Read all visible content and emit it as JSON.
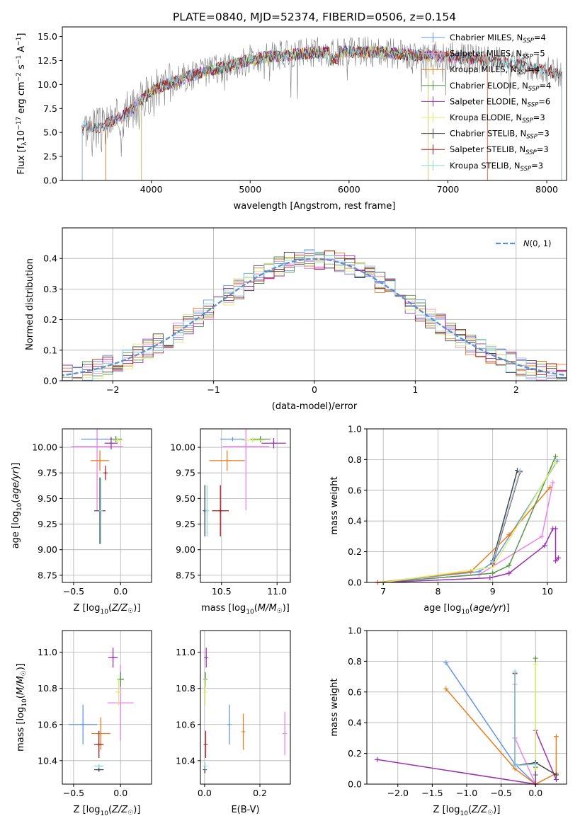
{
  "figure": {
    "title": "PLATE=0840, MJD=52374, FIBERID=0506, z=0.154"
  },
  "colors": {
    "Chabrier MILES": "#6495ed",
    "Salpeter MILES": "#ee82ee",
    "Kroupa MILES": "#e87d1f",
    "Chabrier ELODIE": "#55964a",
    "Salpeter ELODIE": "#9b30b4",
    "Kroupa ELODIE": "#dcef6c",
    "Chabrier STELIB": "#444444",
    "Salpeter STELIB": "#a81c1c",
    "Kroupa STELIB": "#8ed8e3",
    "data": "#808080",
    "normal": "#5b8fd8"
  },
  "chart_data": [
    {
      "id": "spectrum",
      "type": "line",
      "title": "PLATE=0840, MJD=52374, FIBERID=0506, z=0.154",
      "xlabel": "wavelength [Angstrom, rest frame]",
      "ylabel": "Flux [f_λ 10^-17 erg cm^-2 s^-1 A^-1]",
      "xlim": [
        3100,
        8200
      ],
      "ylim": [
        0,
        16
      ],
      "xticks": [
        4000,
        5000,
        6000,
        7000,
        8000
      ],
      "yticks": [
        0.0,
        2.5,
        5.0,
        7.5,
        10.0,
        12.5,
        15.0
      ],
      "xtick_labels": [
        "4000",
        "5000",
        "6000",
        "7000",
        "8000"
      ],
      "ytick_labels": [
        "0.0",
        "2.5",
        "5.0",
        "7.5",
        "10.0",
        "12.5",
        "15.0"
      ],
      "legend_position": "right",
      "legend": [
        {
          "label": "Chabrier MILES, N",
          "sub": "SSP",
          "tail": "=4"
        },
        {
          "label": "Salpeter MILES, N",
          "sub": "SSP",
          "tail": "=5"
        },
        {
          "label": "Kroupa MILES, N",
          "sub": "SSP",
          "tail": "=4"
        },
        {
          "label": "Chabrier ELODIE, N",
          "sub": "SSP",
          "tail": "=4"
        },
        {
          "label": "Salpeter ELODIE, N",
          "sub": "SSP",
          "tail": "=6"
        },
        {
          "label": "Kroupa ELODIE, N",
          "sub": "SSP",
          "tail": "=3"
        },
        {
          "label": "Chabrier STELIB, N",
          "sub": "SSP",
          "tail": "=3"
        },
        {
          "label": "Salpeter STELIB, N",
          "sub": "SSP",
          "tail": "=3"
        },
        {
          "label": "Kroupa STELIB, N",
          "sub": "SSP",
          "tail": "=3"
        }
      ],
      "continuum_points": {
        "x": [
          3300,
          3400,
          3500,
          3600,
          3700,
          3800,
          3900,
          4000,
          4200,
          4400,
          4600,
          4800,
          5000,
          5200,
          5400,
          5600,
          5800,
          6000,
          6200,
          6400,
          6600,
          6800,
          7000,
          7200,
          7400,
          7600,
          7800,
          8000,
          8150
        ],
        "y": [
          5.8,
          5.6,
          5.5,
          6.2,
          6.6,
          7.4,
          8.4,
          9.3,
          10.2,
          10.9,
          11.5,
          11.9,
          12.6,
          12.9,
          13.1,
          13.3,
          13.4,
          13.4,
          13.4,
          13.3,
          13.1,
          13.0,
          12.9,
          12.7,
          12.5,
          12.2,
          11.9,
          11.5,
          11.0
        ]
      },
      "model_wavelength_range": {
        "Chabrier MILES": [
          3540,
          7400
        ],
        "Salpeter MILES": [
          3540,
          7400
        ],
        "Kroupa MILES": [
          3540,
          7400
        ],
        "Chabrier ELODIE": [
          3900,
          6800
        ],
        "Salpeter ELODIE": [
          3900,
          6800
        ],
        "Kroupa ELODIE": [
          3900,
          6800
        ],
        "Chabrier STELIB": [
          3300,
          8150
        ],
        "Salpeter STELIB": [
          3300,
          8150
        ],
        "Kroupa STELIB": [
          3300,
          8150
        ]
      }
    },
    {
      "id": "residual_histogram",
      "type": "bar",
      "xlabel": "(data-model)/error",
      "ylabel": "Normed distribution",
      "xlim": [
        -2.5,
        2.5
      ],
      "ylim": [
        0,
        0.5
      ],
      "xticks": [
        -2,
        -1,
        0,
        1,
        2
      ],
      "yticks": [
        0.0,
        0.1,
        0.2,
        0.3,
        0.4
      ],
      "xtick_labels": [
        "−2",
        "−1",
        "0",
        "1",
        "2"
      ],
      "ytick_labels": [
        "0.0",
        "0.1",
        "0.2",
        "0.3",
        "0.4"
      ],
      "legend_position": "top-right",
      "normal_label": "N(0, 1)",
      "bin_width": 0.1,
      "series_seed_offsets": {
        "Chabrier MILES": 1,
        "Salpeter MILES": 2,
        "Kroupa MILES": 3,
        "Chabrier ELODIE": 4,
        "Salpeter ELODIE": 5,
        "Kroupa ELODIE": 6,
        "Chabrier STELIB": 7,
        "Salpeter STELIB": 8,
        "Kroupa STELIB": 9
      }
    },
    {
      "id": "age_vs_Z",
      "type": "scatter",
      "xlabel": "Z [log10(Z/Z☉)]",
      "ylabel": "age [log10(age/yr)]",
      "xlim": [
        -0.62,
        0.33
      ],
      "ylim": [
        8.68,
        10.18
      ],
      "xticks": [
        -0.5,
        0.0
      ],
      "yticks": [
        8.75,
        9.0,
        9.25,
        9.5,
        9.75,
        10.0
      ],
      "xtick_labels": [
        "−0.5",
        "0.0"
      ],
      "ytick_labels": [
        "8.75",
        "9.00",
        "9.25",
        "9.50",
        "9.75",
        "10.00"
      ],
      "points": [
        {
          "series": "Chabrier MILES",
          "x": -0.25,
          "xerr": 0.34,
          "y": 10.08,
          "yerr": 0.03
        },
        {
          "series": "Salpeter MILES",
          "x": -0.25,
          "xerr": 0.55,
          "y": 10.01,
          "yerr": 1.25
        },
        {
          "series": "Kroupa MILES",
          "x": -0.22,
          "xerr": 0.2,
          "y": 9.87,
          "yerr": 0.2
        },
        {
          "series": "Chabrier ELODIE",
          "x": -0.05,
          "xerr": 0.13,
          "y": 10.08,
          "yerr": 0.06
        },
        {
          "series": "Salpeter ELODIE",
          "x": -0.1,
          "xerr": 0.14,
          "y": 10.04,
          "yerr": 0.12
        },
        {
          "series": "Kroupa ELODIE",
          "x": -0.03,
          "xerr": 0.1,
          "y": 10.07,
          "yerr": 0.05
        },
        {
          "series": "Chabrier STELIB",
          "x": -0.22,
          "xerr": 0.12,
          "y": 9.38,
          "yerr": 0.65
        },
        {
          "series": "Salpeter STELIB",
          "x": -0.16,
          "xerr": 0.02,
          "y": 9.75,
          "yerr": 0.14
        },
        {
          "series": "Kroupa STELIB",
          "x": -0.21,
          "xerr": 0.02,
          "y": 9.38,
          "yerr": 0.65
        }
      ]
    },
    {
      "id": "age_vs_mass",
      "type": "scatter",
      "xlabel": "mass [log10(M/M☉)]",
      "ylabel": "",
      "xlim": [
        10.31,
        11.12
      ],
      "ylim": [
        8.68,
        10.18
      ],
      "xticks": [
        10.5,
        11.0
      ],
      "yticks": [
        8.75,
        9.0,
        9.25,
        9.5,
        9.75,
        10.0
      ],
      "xtick_labels": [
        "10.5",
        "11.0"
      ],
      "ytick_labels": [
        "8.75",
        "9.00",
        "9.25",
        "9.50",
        "9.75",
        "10.00"
      ],
      "points": [
        {
          "series": "Chabrier MILES",
          "x": 10.6,
          "xerr": 0.22,
          "y": 10.08,
          "yerr": 0.03
        },
        {
          "series": "Salpeter MILES",
          "x": 10.72,
          "xerr": 0.42,
          "y": 10.01,
          "yerr": 1.25
        },
        {
          "series": "Kroupa MILES",
          "x": 10.55,
          "xerr": 0.32,
          "y": 9.87,
          "yerr": 0.2
        },
        {
          "series": "Chabrier ELODIE",
          "x": 10.85,
          "xerr": 0.18,
          "y": 10.08,
          "yerr": 0.06
        },
        {
          "series": "Salpeter ELODIE",
          "x": 10.97,
          "xerr": 0.22,
          "y": 10.04,
          "yerr": 0.1
        },
        {
          "series": "Kroupa ELODIE",
          "x": 10.78,
          "xerr": 0.2,
          "y": 10.07,
          "yerr": 0.05
        },
        {
          "series": "Chabrier STELIB",
          "x": 10.35,
          "xerr": 0.02,
          "y": 9.38,
          "yerr": 0.5
        },
        {
          "series": "Salpeter STELIB",
          "x": 10.49,
          "xerr": 0.15,
          "y": 9.38,
          "yerr": 0.5
        },
        {
          "series": "Kroupa STELIB",
          "x": 10.37,
          "xerr": 0.02,
          "y": 9.38,
          "yerr": 0.5
        }
      ]
    },
    {
      "id": "weight_vs_age",
      "type": "line",
      "xlabel": "age [log10(age/yr)]",
      "ylabel": "mass weight",
      "xlim": [
        6.7,
        10.35
      ],
      "ylim": [
        0,
        1
      ],
      "xticks": [
        7,
        8,
        9,
        10
      ],
      "yticks": [
        0.0,
        0.2,
        0.4,
        0.6,
        0.8,
        1.0
      ],
      "xtick_labels": [
        "7",
        "8",
        "9",
        "10"
      ],
      "ytick_labels": [
        "0.0",
        "0.2",
        "0.4",
        "0.6",
        "0.8",
        "1.0"
      ],
      "series": [
        {
          "name": "Chabrier MILES",
          "x": [
            6.9,
            8.75,
            9.0,
            10.18
          ],
          "y": [
            0.0,
            0.07,
            0.13,
            0.79
          ]
        },
        {
          "name": "Salpeter MILES",
          "x": [
            6.9,
            8.75,
            9.9,
            10.1
          ],
          "y": [
            0.0,
            0.05,
            0.3,
            0.65
          ]
        },
        {
          "name": "Kroupa MILES",
          "x": [
            6.9,
            8.6,
            9.3,
            10.05
          ],
          "y": [
            0.0,
            0.07,
            0.31,
            0.62
          ]
        },
        {
          "name": "Chabrier ELODIE",
          "x": [
            7.0,
            9.0,
            9.3,
            10.15
          ],
          "y": [
            0.0,
            0.06,
            0.11,
            0.82
          ]
        },
        {
          "name": "Salpeter ELODIE",
          "x": [
            7.0,
            8.95,
            9.3,
            9.95,
            10.1,
            10.15,
            10.15,
            10.2
          ],
          "y": [
            0.0,
            0.03,
            0.06,
            0.24,
            0.35,
            0.35,
            0.14,
            0.16
          ]
        },
        {
          "name": "Kroupa ELODIE",
          "x": [
            7.0,
            9.0,
            10.15
          ],
          "y": [
            0.0,
            0.1,
            0.78
          ]
        },
        {
          "name": "Chabrier STELIB",
          "x": [
            9.0,
            9.45
          ],
          "y": [
            0.14,
            0.73
          ]
        },
        {
          "name": "Salpeter STELIB",
          "x": [
            9.0,
            9.5
          ],
          "y": [
            0.12,
            0.72
          ]
        },
        {
          "name": "Kroupa STELIB",
          "x": [
            9.0,
            9.5
          ],
          "y": [
            0.13,
            0.73
          ]
        }
      ]
    },
    {
      "id": "mass_vs_Z",
      "type": "scatter",
      "xlabel": "Z [log10(Z/Z☉)]",
      "ylabel": "mass [log10(M/M☉)]",
      "xlim": [
        -0.62,
        0.33
      ],
      "ylim": [
        10.27,
        11.12
      ],
      "xticks": [
        -0.5,
        0.0
      ],
      "yticks": [
        10.4,
        10.6,
        10.8,
        11.0
      ],
      "xtick_labels": [
        "−0.5",
        "0.0"
      ],
      "ytick_labels": [
        "10.4",
        "10.6",
        "10.8",
        "11.0"
      ],
      "points": [
        {
          "series": "Chabrier MILES",
          "x": -0.4,
          "xerr": 0.3,
          "y": 10.6,
          "yerr": 0.22
        },
        {
          "series": "Salpeter MILES",
          "x": 0.0,
          "xerr": 0.28,
          "y": 10.72,
          "yerr": 0.42
        },
        {
          "series": "Kroupa MILES",
          "x": -0.21,
          "xerr": 0.2,
          "y": 10.55,
          "yerr": 0.18
        },
        {
          "series": "Chabrier ELODIE",
          "x": 0.0,
          "xerr": 0.07,
          "y": 10.85,
          "yerr": 0.08
        },
        {
          "series": "Salpeter ELODIE",
          "x": -0.08,
          "xerr": 0.1,
          "y": 10.97,
          "yerr": 0.11
        },
        {
          "series": "Kroupa ELODIE",
          "x": -0.02,
          "xerr": 0.06,
          "y": 10.78,
          "yerr": 0.15
        },
        {
          "series": "Chabrier STELIB",
          "x": -0.23,
          "xerr": 0.1,
          "y": 10.35,
          "yerr": 0.02
        },
        {
          "series": "Salpeter STELIB",
          "x": -0.23,
          "xerr": 0.1,
          "y": 10.49,
          "yerr": 0.15
        },
        {
          "series": "Kroupa STELIB",
          "x": -0.23,
          "xerr": 0.1,
          "y": 10.37,
          "yerr": 0.02
        }
      ]
    },
    {
      "id": "mass_vs_EBV",
      "type": "scatter",
      "xlabel": "E(B-V)",
      "ylabel": "",
      "xlim": [
        -0.015,
        0.31
      ],
      "ylim": [
        10.27,
        11.12
      ],
      "xticks": [
        0.0,
        0.2
      ],
      "yticks": [
        10.4,
        10.6,
        10.8,
        11.0
      ],
      "xtick_labels": [
        "0.0",
        "0.2"
      ],
      "ytick_labels": [
        "10.4",
        "10.6",
        "10.8",
        "11.0"
      ],
      "points": [
        {
          "series": "Chabrier MILES",
          "x": 0.09,
          "xerr": 0.0,
          "y": 10.6,
          "yerr": 0.22
        },
        {
          "series": "Salpeter MILES",
          "x": 0.29,
          "xerr": 0.0,
          "y": 10.55,
          "yerr": 0.24
        },
        {
          "series": "Kroupa MILES",
          "x": 0.14,
          "xerr": 0.0,
          "y": 10.56,
          "yerr": 0.2
        },
        {
          "series": "Chabrier ELODIE",
          "x": 0.003,
          "xerr": 0.0,
          "y": 10.85,
          "yerr": 0.08
        },
        {
          "series": "Salpeter ELODIE",
          "x": 0.006,
          "xerr": 0.0,
          "y": 10.97,
          "yerr": 0.11
        },
        {
          "series": "Kroupa ELODIE",
          "x": 0.002,
          "xerr": 0.0,
          "y": 10.78,
          "yerr": 0.15
        },
        {
          "series": "Chabrier STELIB",
          "x": 0.001,
          "xerr": 0.0,
          "y": 10.35,
          "yerr": 0.04
        },
        {
          "series": "Salpeter STELIB",
          "x": 0.004,
          "xerr": 0.0,
          "y": 10.49,
          "yerr": 0.15
        },
        {
          "series": "Kroupa STELIB",
          "x": 0.002,
          "xerr": 0.0,
          "y": 10.37,
          "yerr": 0.04
        }
      ]
    },
    {
      "id": "weight_vs_Z",
      "type": "line",
      "xlabel": "Z [log10(Z/Z☉)]",
      "ylabel": "mass weight",
      "xlim": [
        -2.45,
        0.45
      ],
      "ylim": [
        0,
        1
      ],
      "xticks": [
        -2.0,
        -1.5,
        -1.0,
        -0.5,
        0.0
      ],
      "yticks": [
        0.0,
        0.2,
        0.4,
        0.6,
        0.8,
        1.0
      ],
      "xtick_labels": [
        "−2.0",
        "−1.5",
        "−1.0",
        "−0.5",
        "0.0"
      ],
      "ytick_labels": [
        "0.0",
        "0.2",
        "0.4",
        "0.6",
        "0.8",
        "1.0"
      ],
      "series": [
        {
          "name": "Chabrier MILES",
          "x": [
            -1.3,
            -0.3,
            0.0
          ],
          "y": [
            0.79,
            0.13,
            0.0
          ]
        },
        {
          "name": "Salpeter MILES",
          "x": [
            -0.3,
            -0.3,
            0.0
          ],
          "y": [
            0.65,
            0.3,
            0.0
          ]
        },
        {
          "name": "Kroupa MILES",
          "x": [
            -1.3,
            -0.3,
            0.0,
            0.3,
            0.3
          ],
          "y": [
            0.62,
            0.1,
            0.0,
            0.07,
            0.31
          ]
        },
        {
          "name": "Chabrier ELODIE",
          "x": [
            0.0,
            0.0,
            0.0
          ],
          "y": [
            0.82,
            0.11,
            0.06
          ]
        },
        {
          "name": "Salpeter ELODIE",
          "x": [
            -2.3,
            0.0,
            0.0,
            0.3
          ],
          "y": [
            0.16,
            0.0,
            0.35,
            0.03
          ]
        },
        {
          "name": "Kroupa ELODIE",
          "x": [
            0.0,
            0.0
          ],
          "y": [
            0.78,
            0.1
          ]
        },
        {
          "name": "Chabrier STELIB",
          "x": [
            -0.3,
            -0.3,
            0.0,
            0.3
          ],
          "y": [
            0.73,
            0.12,
            0.14,
            0.06
          ]
        },
        {
          "name": "Salpeter STELIB",
          "x": [
            -0.3,
            -0.3
          ],
          "y": [
            0.72,
            0.12
          ]
        },
        {
          "name": "Kroupa STELIB",
          "x": [
            -0.3,
            -0.3,
            0.0
          ],
          "y": [
            0.73,
            0.12,
            0.13
          ]
        }
      ]
    }
  ]
}
